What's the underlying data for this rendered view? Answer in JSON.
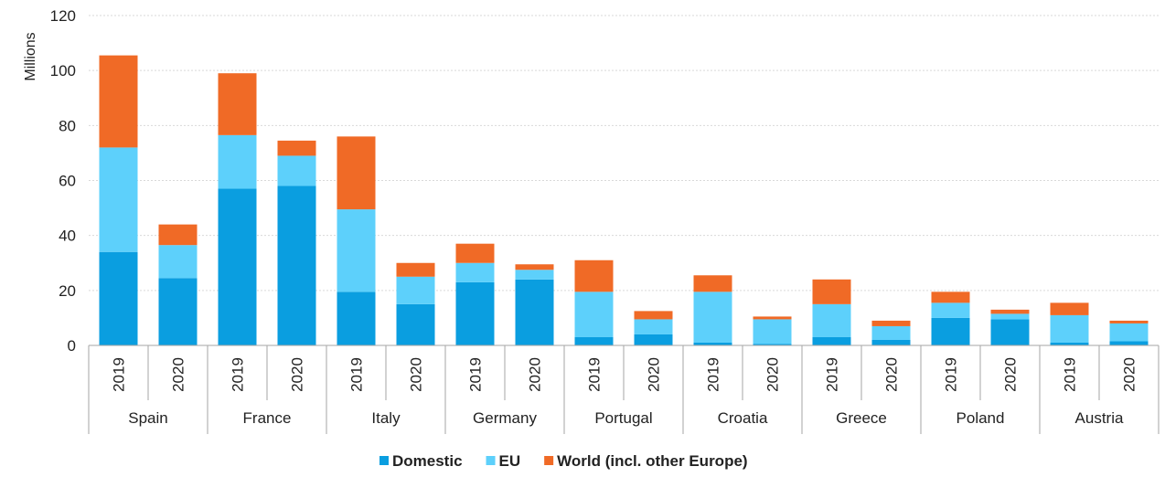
{
  "chart_data": {
    "type": "bar",
    "stacked": true,
    "ylabel": "Millions",
    "ylim": [
      0,
      120
    ],
    "yticks": [
      0,
      20,
      40,
      60,
      80,
      100,
      120
    ],
    "grid": true,
    "legend_position": "bottom",
    "groups": [
      "Spain",
      "France",
      "Italy",
      "Germany",
      "Portugal",
      "Croatia",
      "Greece",
      "Poland",
      "Austria"
    ],
    "years": [
      "2019",
      "2020"
    ],
    "categories": [
      "Spain 2019",
      "Spain 2020",
      "France 2019",
      "France 2020",
      "Italy 2019",
      "Italy 2020",
      "Germany 2019",
      "Germany 2020",
      "Portugal 2019",
      "Portugal 2020",
      "Croatia 2019",
      "Croatia 2020",
      "Greece 2019",
      "Greece 2020",
      "Poland 2019",
      "Poland 2020",
      "Austria 2019",
      "Austria 2020"
    ],
    "series": [
      {
        "name": "Domestic",
        "color": "#0a9ee0",
        "values": [
          34,
          24.5,
          57,
          58,
          19.5,
          15,
          23,
          24,
          3,
          4,
          1,
          0.5,
          3,
          2,
          10,
          9.5,
          1,
          1.5
        ]
      },
      {
        "name": "EU",
        "color": "#5dd0fb",
        "values": [
          38,
          12,
          19.5,
          11,
          30,
          10,
          7,
          3.5,
          16.5,
          5.5,
          18.5,
          9,
          12,
          5,
          5.5,
          2,
          10,
          6.5
        ]
      },
      {
        "name": "World (incl. other Europe)",
        "color": "#f06a26",
        "values": [
          33.5,
          7.5,
          22.5,
          5.5,
          26.5,
          5,
          7,
          2,
          11.5,
          3,
          6,
          1,
          9,
          2,
          4,
          1.5,
          4.5,
          1
        ]
      }
    ]
  }
}
